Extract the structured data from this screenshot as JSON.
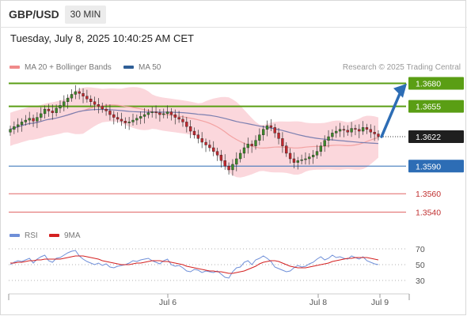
{
  "header": {
    "symbol": "GBP/USD",
    "timeframe": "30 MIN"
  },
  "timestamp": "Tuesday, July 8, 2025 10:40:25 AM CET",
  "legend": {
    "ma20": {
      "label": "MA 20 + Bollinger Bands",
      "color": "#f08a8a"
    },
    "ma50": {
      "label": "MA 50",
      "color": "#2f5f97"
    },
    "rsi": {
      "label": "RSI",
      "color": "#6f8fd8"
    },
    "ma9": {
      "label": "9MA",
      "color": "#d42020"
    }
  },
  "credit": "Research © 2025 Trading Central",
  "chart_data": [
    {
      "type": "candlestick",
      "panel": "price",
      "ylim": [
        1.3525,
        1.3695
      ],
      "last_price": {
        "value": 1.3622,
        "label": "1.3622"
      },
      "levels": [
        {
          "value": 1.368,
          "label": "1.3680",
          "kind": "resistance",
          "color": "#5a9e14"
        },
        {
          "value": 1.3655,
          "label": "1.3655",
          "kind": "resistance",
          "color": "#5a9e14"
        },
        {
          "value": 1.359,
          "label": "1.3590",
          "kind": "pivot",
          "color": "#2d6db5"
        },
        {
          "value": 1.356,
          "label": "1.3560",
          "kind": "support",
          "color": "#e06666"
        },
        {
          "value": 1.354,
          "label": "1.3540",
          "kind": "support",
          "color": "#e06666"
        }
      ],
      "forecast_arrow": {
        "from": 1.3622,
        "to": 1.3678,
        "color": "#2d6db5"
      },
      "bollinger_band_color": "#fbd7dc",
      "up_color": "#3d8a2a",
      "down_color": "#c2272d",
      "close": [
        1.363,
        1.3633,
        1.3635,
        1.3638,
        1.364,
        1.3642,
        1.3639,
        1.3643,
        1.3647,
        1.3652,
        1.365,
        1.3648,
        1.3653,
        1.3656,
        1.366,
        1.3664,
        1.3668,
        1.3671,
        1.3669,
        1.3666,
        1.3663,
        1.366,
        1.3657,
        1.3655,
        1.3652,
        1.365,
        1.3646,
        1.3643,
        1.3641,
        1.3639,
        1.3637,
        1.3638,
        1.364,
        1.3642,
        1.3644,
        1.3646,
        1.3648,
        1.3649,
        1.3648,
        1.3646,
        1.3647,
        1.3649,
        1.3646,
        1.3643,
        1.3641,
        1.3638,
        1.3633,
        1.3628,
        1.3624,
        1.362,
        1.3616,
        1.3613,
        1.361,
        1.3606,
        1.3602,
        1.3596,
        1.359,
        1.3586,
        1.3592,
        1.3598,
        1.3604,
        1.361,
        1.3614,
        1.3612,
        1.3618,
        1.3624,
        1.363,
        1.3634,
        1.3632,
        1.3626,
        1.362,
        1.3612,
        1.3604,
        1.3598,
        1.3594,
        1.3596,
        1.3597,
        1.3598,
        1.36,
        1.3602,
        1.3606,
        1.3612,
        1.3618,
        1.3622,
        1.3626,
        1.3628,
        1.363,
        1.3629,
        1.3627,
        1.3631,
        1.363,
        1.3628,
        1.3632,
        1.363,
        1.3627,
        1.3625,
        1.3622
      ]
    },
    {
      "type": "line",
      "panel": "rsi",
      "ylim": [
        20,
        80
      ],
      "y_ticks": [
        70,
        50,
        30
      ],
      "series": [
        {
          "name": "RSI",
          "values": [
            50,
            53,
            55,
            54,
            56,
            58,
            52,
            57,
            60,
            62,
            55,
            53,
            58,
            59,
            62,
            65,
            67,
            68,
            61,
            57,
            54,
            52,
            50,
            52,
            49,
            51,
            47,
            46,
            48,
            49,
            50,
            52,
            55,
            54,
            56,
            57,
            58,
            55,
            53,
            51,
            55,
            57,
            50,
            48,
            49,
            46,
            42,
            41,
            44,
            43,
            40,
            42,
            41,
            40,
            42,
            38,
            34,
            33,
            41,
            46,
            47,
            53,
            55,
            50,
            56,
            58,
            61,
            58,
            54,
            47,
            45,
            43,
            41,
            42,
            46,
            49,
            47,
            48,
            51,
            53,
            57,
            60,
            56,
            58,
            62,
            59,
            60,
            58,
            57,
            61,
            59,
            57,
            60,
            55,
            53,
            51,
            50
          ]
        },
        {
          "name": "9MA",
          "values": [
            52,
            52,
            53,
            53,
            54,
            55,
            55,
            56,
            56,
            57,
            57,
            57,
            57,
            57,
            58,
            59,
            60,
            61,
            61,
            61,
            60,
            59,
            58,
            57,
            55,
            54,
            53,
            52,
            51,
            50,
            50,
            50,
            51,
            52,
            52,
            53,
            54,
            55,
            55,
            55,
            54,
            54,
            53,
            52,
            51,
            50,
            48,
            47,
            46,
            45,
            44,
            43,
            42,
            42,
            41,
            41,
            40,
            39,
            39,
            40,
            41,
            42,
            44,
            46,
            48,
            51,
            53,
            54,
            55,
            55,
            54,
            52,
            50,
            48,
            47,
            46,
            46,
            46,
            47,
            48,
            49,
            50,
            51,
            52,
            54,
            55,
            56,
            57,
            58,
            58,
            59,
            59,
            59,
            59,
            58,
            57,
            56
          ]
        }
      ]
    }
  ],
  "x_labels": [
    "Jul 6",
    "Jul 8",
    "Jul 9"
  ]
}
